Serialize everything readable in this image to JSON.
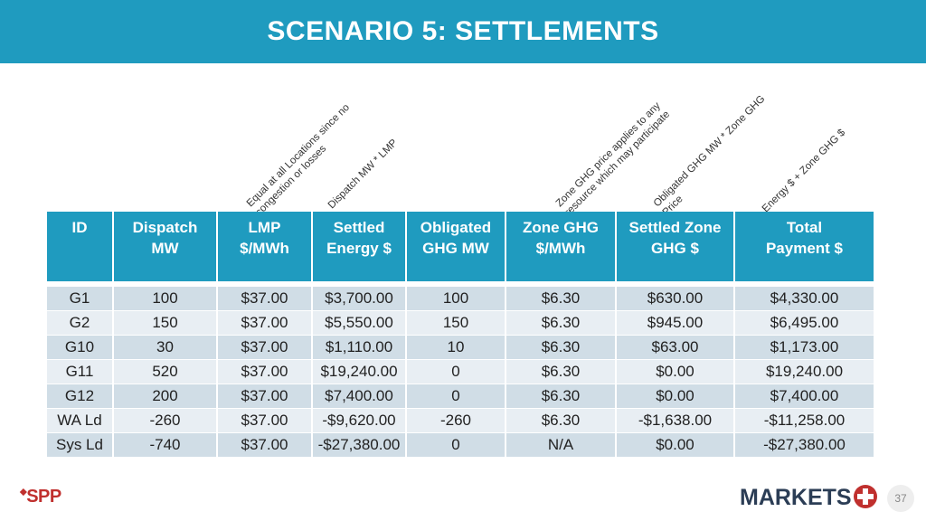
{
  "header": {
    "title": "SCENARIO 5:  SETTLEMENTS"
  },
  "annotations": [
    "Equal at all Locations since no\ncongestion or losses",
    "Dispatch MW * LMP",
    "Zone GHG price applies to any\nresource which may participate",
    "Obligated GHG MW * Zone GHG\nPrice",
    "Energy $ + Zone GHG $"
  ],
  "table": {
    "columns": [
      [
        "ID",
        ""
      ],
      [
        "Dispatch",
        "MW"
      ],
      [
        "LMP",
        "$/MWh"
      ],
      [
        "Settled",
        "Energy $"
      ],
      [
        "Obligated",
        "GHG MW"
      ],
      [
        "Zone GHG",
        "$/MWh"
      ],
      [
        "Settled Zone",
        "GHG $"
      ],
      [
        "Total",
        "Payment $"
      ]
    ],
    "rows": [
      [
        "G1",
        "100",
        "$37.00",
        "$3,700.00",
        "100",
        "$6.30",
        "$630.00",
        "$4,330.00"
      ],
      [
        "G2",
        "150",
        "$37.00",
        "$5,550.00",
        "150",
        "$6.30",
        "$945.00",
        "$6,495.00"
      ],
      [
        "G10",
        "30",
        "$37.00",
        "$1,110.00",
        "10",
        "$6.30",
        "$63.00",
        "$1,173.00"
      ],
      [
        "G11",
        "520",
        "$37.00",
        "$19,240.00",
        "0",
        "$6.30",
        "$0.00",
        "$19,240.00"
      ],
      [
        "G12",
        "200",
        "$37.00",
        "$7,400.00",
        "0",
        "$6.30",
        "$0.00",
        "$7,400.00"
      ],
      [
        "WA Ld",
        "-260",
        "$37.00",
        "-$9,620.00",
        "-260",
        "$6.30",
        "-$1,638.00",
        "-$11,258.00"
      ],
      [
        "Sys Ld",
        "-740",
        "$37.00",
        "-$27,380.00",
        "0",
        "N/A",
        "$0.00",
        "-$27,380.00"
      ]
    ]
  },
  "footer": {
    "left_logo": "SPP",
    "right_logo": "MARKETS",
    "page_number": "37"
  },
  "colors": {
    "header": "#1f9bbf",
    "row_odd": "#d0dde6",
    "row_even": "#e8eef3",
    "logo_red": "#c0302e",
    "logo_navy": "#2b3d55"
  }
}
